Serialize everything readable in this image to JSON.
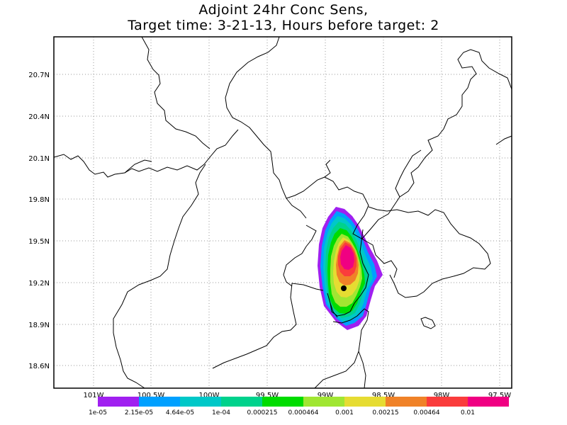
{
  "title_line1": "Adjoint 24hr Conc Sens,",
  "title_line2": "Target time: 3-21-13, Hours before target: 2",
  "lat_labels": [
    "20.7N",
    "20.4N",
    "20.1N",
    "19.8N",
    "19.5N",
    "19.2N",
    "18.9N",
    "18.6N"
  ],
  "lon_labels": [
    "101W",
    "100.5W",
    "100W",
    "99.5W",
    "99W",
    "98.5W",
    "98W",
    "97.5W"
  ],
  "legend": {
    "labels": [
      "1e-05",
      "2.15e-05",
      "4.64e-05",
      "1e-04",
      "0.000215",
      "0.000464",
      "0.001",
      "0.00215",
      "0.00464",
      "0.01"
    ],
    "colors": [
      "#a020f0",
      "#00a0ff",
      "#00c8c8",
      "#00d28c",
      "#00dc00",
      "#a0e632",
      "#e6dc32",
      "#f08228",
      "#fa3c3c",
      "#f00082"
    ]
  },
  "target_marker": {
    "lon": -98.89,
    "lat": 19.16
  }
}
